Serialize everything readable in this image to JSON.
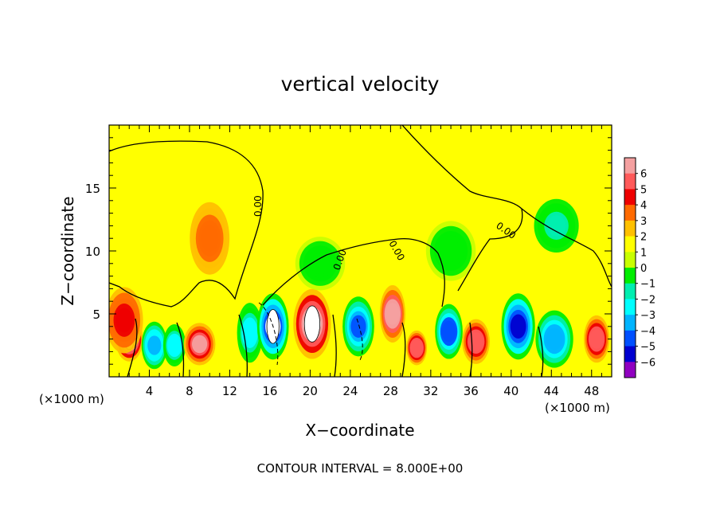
{
  "chart_data": {
    "type": "heatmap",
    "title": "vertical velocity",
    "xlabel": "X−coordinate",
    "ylabel": "Z−coordinate",
    "x_unit_left": "(×1000 m)",
    "x_unit_right": "(×1000 m)",
    "xlim": [
      0,
      50
    ],
    "ylim": [
      0,
      20
    ],
    "x_ticks": [
      4,
      8,
      12,
      16,
      20,
      24,
      28,
      32,
      36,
      40,
      44,
      48
    ],
    "y_ticks": [
      5,
      10,
      15
    ],
    "footer": "CONTOUR INTERVAL = 8.000E+00",
    "contour_zero_label": "0.00",
    "colorbar": {
      "levels": [
        6,
        5,
        4,
        3,
        2,
        1,
        0,
        -1,
        -2,
        -3,
        -4,
        -5,
        -6
      ],
      "colors": [
        "#f4a0a0",
        "#ff5a5a",
        "#ee0000",
        "#ff6a00",
        "#ffc000",
        "#ffff00",
        "#c8ff00",
        "#00ee00",
        "#00eeb0",
        "#00ffff",
        "#00b4ff",
        "#0050ff",
        "#0000d0",
        "#9000c0"
      ]
    },
    "cells": [
      {
        "x": 2,
        "z": 3,
        "w": 1.8,
        "h": 2.8,
        "v": 6.5
      },
      {
        "x": 1.5,
        "z": 4.5,
        "w": 2.8,
        "h": 4.5,
        "v": 4
      },
      {
        "x": 4.5,
        "z": 2.5,
        "w": 1.6,
        "h": 3,
        "v": -4
      },
      {
        "x": 6.5,
        "z": 2.5,
        "w": 1.3,
        "h": 2.6,
        "v": -3
      },
      {
        "x": 9,
        "z": 2.6,
        "w": 2.2,
        "h": 2.6,
        "v": 5.5
      },
      {
        "x": 10,
        "z": 11,
        "w": 3,
        "h": 5,
        "v": 2.5
      },
      {
        "x": 14,
        "z": 3.5,
        "w": 1.6,
        "h": 4,
        "v": -3
      },
      {
        "x": 16.3,
        "z": 4,
        "w": 2.2,
        "h": 4.5,
        "v": -6.5
      },
      {
        "x": 20.2,
        "z": 4.2,
        "w": 2.8,
        "h": 4.8,
        "v": 6.5
      },
      {
        "x": 24.8,
        "z": 4,
        "w": 2.2,
        "h": 4,
        "v": -5
      },
      {
        "x": 28.2,
        "z": 5,
        "w": 1.6,
        "h": 3.8,
        "v": 6
      },
      {
        "x": 30.6,
        "z": 2.3,
        "w": 1.1,
        "h": 2,
        "v": 5
      },
      {
        "x": 33.8,
        "z": 3.6,
        "w": 1.8,
        "h": 3.6,
        "v": -5.5
      },
      {
        "x": 36.5,
        "z": 2.8,
        "w": 1.8,
        "h": 2.8,
        "v": 5
      },
      {
        "x": 40.7,
        "z": 4,
        "w": 2.4,
        "h": 4.5,
        "v": -6
      },
      {
        "x": 44.3,
        "z": 3,
        "w": 2.8,
        "h": 3.8,
        "v": -4.5
      },
      {
        "x": 44.5,
        "z": 12,
        "w": 3.5,
        "h": 3.5,
        "v": -2
      },
      {
        "x": 48.5,
        "z": 3,
        "w": 1.6,
        "h": 3,
        "v": 4.5
      },
      {
        "x": 21,
        "z": 9,
        "w": 4,
        "h": 3.5,
        "v": -1
      },
      {
        "x": 34,
        "z": 10,
        "w": 4,
        "h": 4,
        "v": -1.5
      }
    ]
  }
}
